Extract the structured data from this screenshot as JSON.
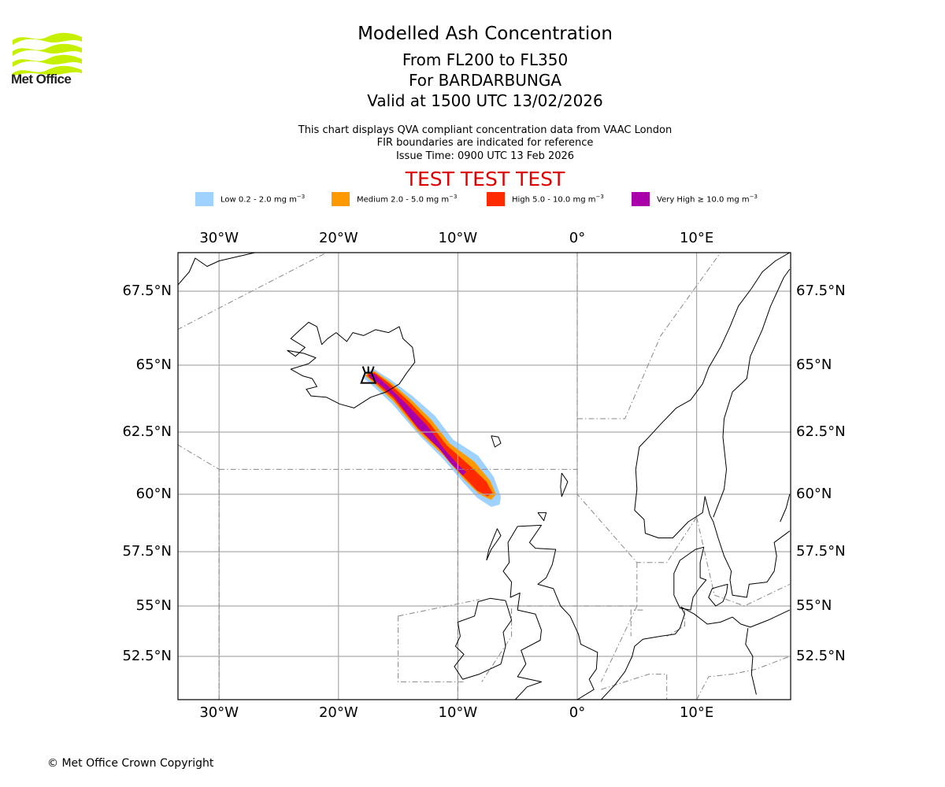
{
  "header": {
    "logo_text": "Met Office",
    "title": "Modelled Ash Concentration",
    "subtitle_levels": "From FL200 to FL350",
    "subtitle_volcano": "For BARDARBUNGA",
    "subtitle_valid": "Valid at 1500 UTC 13/02/2026",
    "info_line1": "This chart displays QVA compliant concentration data from VAAC London",
    "info_line2": "FIR boundaries are indicated for reference",
    "info_line3": "Issue Time: 0900 UTC 13 Feb 2026",
    "test_banner": "TEST TEST TEST",
    "test_color": "#e00000"
  },
  "legend": [
    {
      "label": "Low 0.2 - 2.0 mg m",
      "unit_exp": "−3",
      "color": "#a0d2ff"
    },
    {
      "label": "Medium 2.0 - 5.0 mg m",
      "unit_exp": "−3",
      "color": "#ff9900"
    },
    {
      "label": "High 5.0 - 10.0 mg m",
      "unit_exp": "−3",
      "color": "#ff2a00"
    },
    {
      "label": "Very High ≥ 10.0 mg m",
      "unit_exp": "−3",
      "color": "#aa00aa"
    }
  ],
  "footer": {
    "copyright": "© Met Office Crown Copyright"
  },
  "chart_data": {
    "type": "heatmap",
    "title": "Modelled Ash Concentration",
    "projection": "mercator",
    "extent": {
      "lon": [
        -33.5,
        17.8
      ],
      "lat": [
        50.8,
        68.9
      ]
    },
    "grid": true,
    "lon_ticks": [
      -30,
      -20,
      -10,
      0,
      10
    ],
    "lon_tick_labels": [
      "30°W",
      "20°W",
      "10°W",
      "0°",
      "10°E"
    ],
    "lat_ticks": [
      52.5,
      55,
      57.5,
      60,
      62.5,
      65,
      67.5
    ],
    "lat_tick_labels": [
      "52.5°N",
      "55°N",
      "57.5°N",
      "60°N",
      "62.5°N",
      "65°N",
      "67.5°N"
    ],
    "volcano": {
      "name": "BARDARBUNGA",
      "lon": -17.5,
      "lat": 64.6,
      "icon": "volcano-icon"
    },
    "concentration_levels": [
      {
        "level": "Low",
        "min": 0.2,
        "max": 2.0,
        "unit": "mg m-3",
        "polygon": [
          [
            -17.8,
            64.75
          ],
          [
            -17.0,
            64.85
          ],
          [
            -15.6,
            64.45
          ],
          [
            -13.8,
            63.85
          ],
          [
            -11.9,
            63.1
          ],
          [
            -10.4,
            62.2
          ],
          [
            -8.3,
            61.55
          ],
          [
            -7.0,
            60.7
          ],
          [
            -6.4,
            59.9
          ],
          [
            -6.5,
            59.55
          ],
          [
            -7.2,
            59.45
          ],
          [
            -8.4,
            59.85
          ],
          [
            -9.6,
            60.5
          ],
          [
            -11.2,
            61.4
          ],
          [
            -13.2,
            62.35
          ],
          [
            -15.5,
            63.55
          ],
          [
            -17.3,
            64.3
          ],
          [
            -18.0,
            64.55
          ]
        ]
      },
      {
        "level": "Medium",
        "min": 2.0,
        "max": 5.0,
        "unit": "mg m-3",
        "polygon": [
          [
            -17.6,
            64.72
          ],
          [
            -17.0,
            64.78
          ],
          [
            -15.6,
            64.35
          ],
          [
            -13.9,
            63.7
          ],
          [
            -12.2,
            62.95
          ],
          [
            -10.7,
            62.05
          ],
          [
            -8.6,
            61.3
          ],
          [
            -7.3,
            60.55
          ],
          [
            -6.8,
            60.0
          ],
          [
            -7.2,
            59.75
          ],
          [
            -8.2,
            60.0
          ],
          [
            -9.5,
            60.6
          ],
          [
            -11.2,
            61.55
          ],
          [
            -13.3,
            62.5
          ],
          [
            -15.4,
            63.65
          ],
          [
            -17.1,
            64.35
          ],
          [
            -17.75,
            64.6
          ]
        ]
      },
      {
        "level": "High",
        "min": 5.0,
        "max": 10.0,
        "unit": "mg m-3",
        "polygon": [
          [
            -17.5,
            64.7
          ],
          [
            -17.0,
            64.73
          ],
          [
            -15.7,
            64.3
          ],
          [
            -14.0,
            63.6
          ],
          [
            -12.4,
            62.85
          ],
          [
            -10.9,
            61.95
          ],
          [
            -9.0,
            61.15
          ],
          [
            -7.6,
            60.5
          ],
          [
            -7.1,
            60.05
          ],
          [
            -7.5,
            59.9
          ],
          [
            -8.4,
            60.15
          ],
          [
            -9.6,
            60.75
          ],
          [
            -11.3,
            61.7
          ],
          [
            -13.3,
            62.6
          ],
          [
            -15.4,
            63.75
          ],
          [
            -17.1,
            64.42
          ],
          [
            -17.6,
            64.6
          ]
        ]
      },
      {
        "level": "Very High",
        "min": 10.0,
        "max": null,
        "unit": "mg m-3",
        "polygon": [
          [
            -17.4,
            64.67
          ],
          [
            -17.0,
            64.68
          ],
          [
            -15.8,
            64.2
          ],
          [
            -14.2,
            63.5
          ],
          [
            -12.6,
            62.75
          ],
          [
            -11.2,
            61.85
          ],
          [
            -9.9,
            61.15
          ],
          [
            -9.3,
            60.9
          ],
          [
            -9.6,
            60.75
          ],
          [
            -10.6,
            61.25
          ],
          [
            -11.6,
            61.85
          ],
          [
            -13.4,
            62.7
          ],
          [
            -15.4,
            63.85
          ],
          [
            -17.0,
            64.45
          ],
          [
            -17.45,
            64.55
          ]
        ]
      }
    ],
    "annotations": [
      "FIR boundaries are indicated for reference"
    ]
  }
}
